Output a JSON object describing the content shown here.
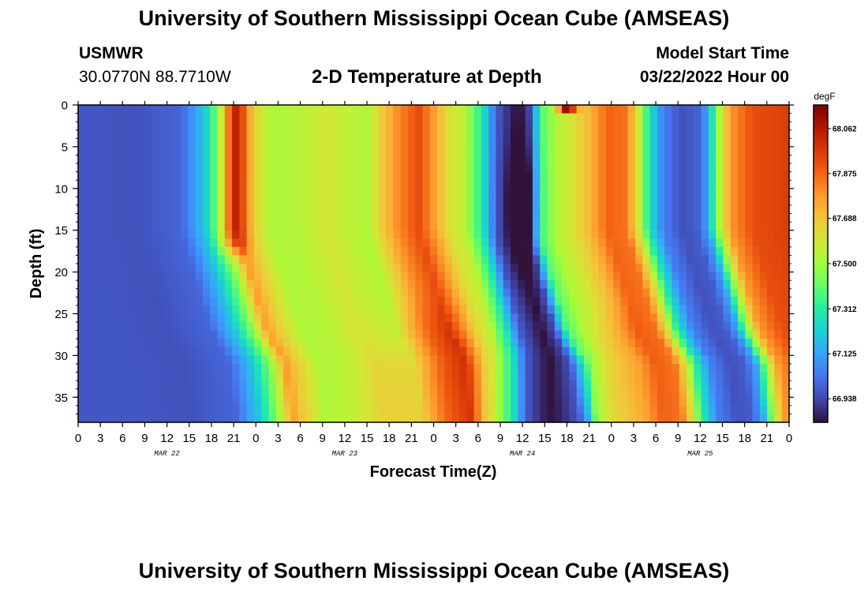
{
  "header": {
    "title": "University of Southern Mississippi Ocean Cube (AMSEAS)",
    "station_id": "USMWR",
    "station_coords": "30.0770N  88.7710W",
    "chart_title": "2-D Temperature at Depth",
    "model_start_label": "Model Start Time",
    "model_start_value": "03/22/2022 Hour 00"
  },
  "footer": {
    "title": "University of Southern Mississippi Ocean Cube (AMSEAS)"
  },
  "colors": {
    "colormap": [
      "#30123b",
      "#4145ab",
      "#4675ed",
      "#39a2fc",
      "#1bcfd4",
      "#24eca6",
      "#61fc6c",
      "#a4fc3b",
      "#d1e834",
      "#f3c63a",
      "#fe9b2d",
      "#f36315",
      "#d93806",
      "#b11901",
      "#7a0402"
    ]
  },
  "chart_data": {
    "type": "heatmap",
    "title": "2-D Temperature at Depth",
    "xlabel": "Forecast Time(Z)",
    "ylabel": "Depth (ft)",
    "x_unit": "hours from model start",
    "xlim": [
      0,
      96
    ],
    "ylim": [
      0,
      38
    ],
    "y_inverted": true,
    "x_ticks": [
      0,
      3,
      6,
      9,
      12,
      15,
      18,
      21,
      24,
      27,
      30,
      33,
      36,
      39,
      42,
      45,
      48,
      51,
      54,
      57,
      60,
      63,
      66,
      69,
      72,
      75,
      78,
      81,
      84,
      87,
      90,
      93,
      96
    ],
    "x_tick_labels": [
      "0",
      "3",
      "6",
      "9",
      "12",
      "15",
      "18",
      "21",
      "0",
      "3",
      "6",
      "9",
      "12",
      "15",
      "18",
      "21",
      "0",
      "3",
      "6",
      "9",
      "12",
      "15",
      "18",
      "21",
      "0",
      "3",
      "6",
      "9",
      "12",
      "15",
      "18",
      "21",
      "0"
    ],
    "day_labels": [
      {
        "hour": 12,
        "text": "MAR 22"
      },
      {
        "hour": 36,
        "text": "MAR 23"
      },
      {
        "hour": 60,
        "text": "MAR 24"
      },
      {
        "hour": 84,
        "text": "MAR 25"
      }
    ],
    "y_ticks": [
      0,
      5,
      10,
      15,
      20,
      25,
      30,
      35
    ],
    "y_tick_labels": [
      "0",
      "5",
      "10",
      "15",
      "20",
      "25",
      "30",
      "35"
    ],
    "colorbar": {
      "unit": "degF",
      "min": 66.84,
      "max": 68.16,
      "ticks": [
        68.062,
        67.875,
        67.688,
        67.5,
        67.312,
        67.125,
        66.938
      ],
      "tick_labels": [
        "68.062",
        "67.875",
        "67.688",
        "67.500",
        "67.312",
        "67.125",
        "66.938"
      ]
    },
    "grid": false
  }
}
